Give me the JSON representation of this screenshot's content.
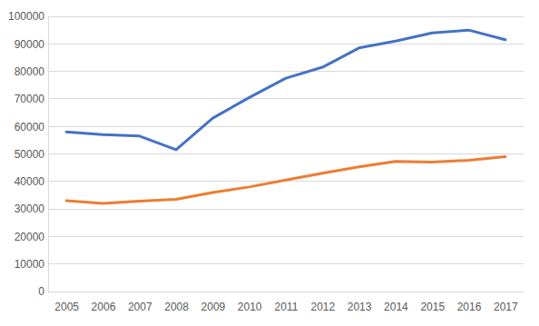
{
  "chart_data": {
    "type": "line",
    "categories": [
      "2005",
      "2006",
      "2007",
      "2008",
      "2009",
      "2010",
      "2011",
      "2012",
      "2013",
      "2014",
      "2015",
      "2016",
      "2017"
    ],
    "series": [
      {
        "color": "#4472c4",
        "values": [
          58000,
          57000,
          56500,
          51500,
          63000,
          70500,
          77500,
          81500,
          88500,
          91000,
          94000,
          95000,
          91500
        ]
      },
      {
        "color": "#ed7d31",
        "values": [
          33000,
          32000,
          32800,
          33500,
          36000,
          38000,
          40500,
          43000,
          45300,
          47300,
          47000,
          47700,
          49000
        ]
      }
    ],
    "ylim": [
      0,
      100000
    ],
    "yticks": [
      0,
      10000,
      20000,
      30000,
      40000,
      50000,
      60000,
      70000,
      80000,
      90000,
      100000
    ],
    "grid": true
  }
}
